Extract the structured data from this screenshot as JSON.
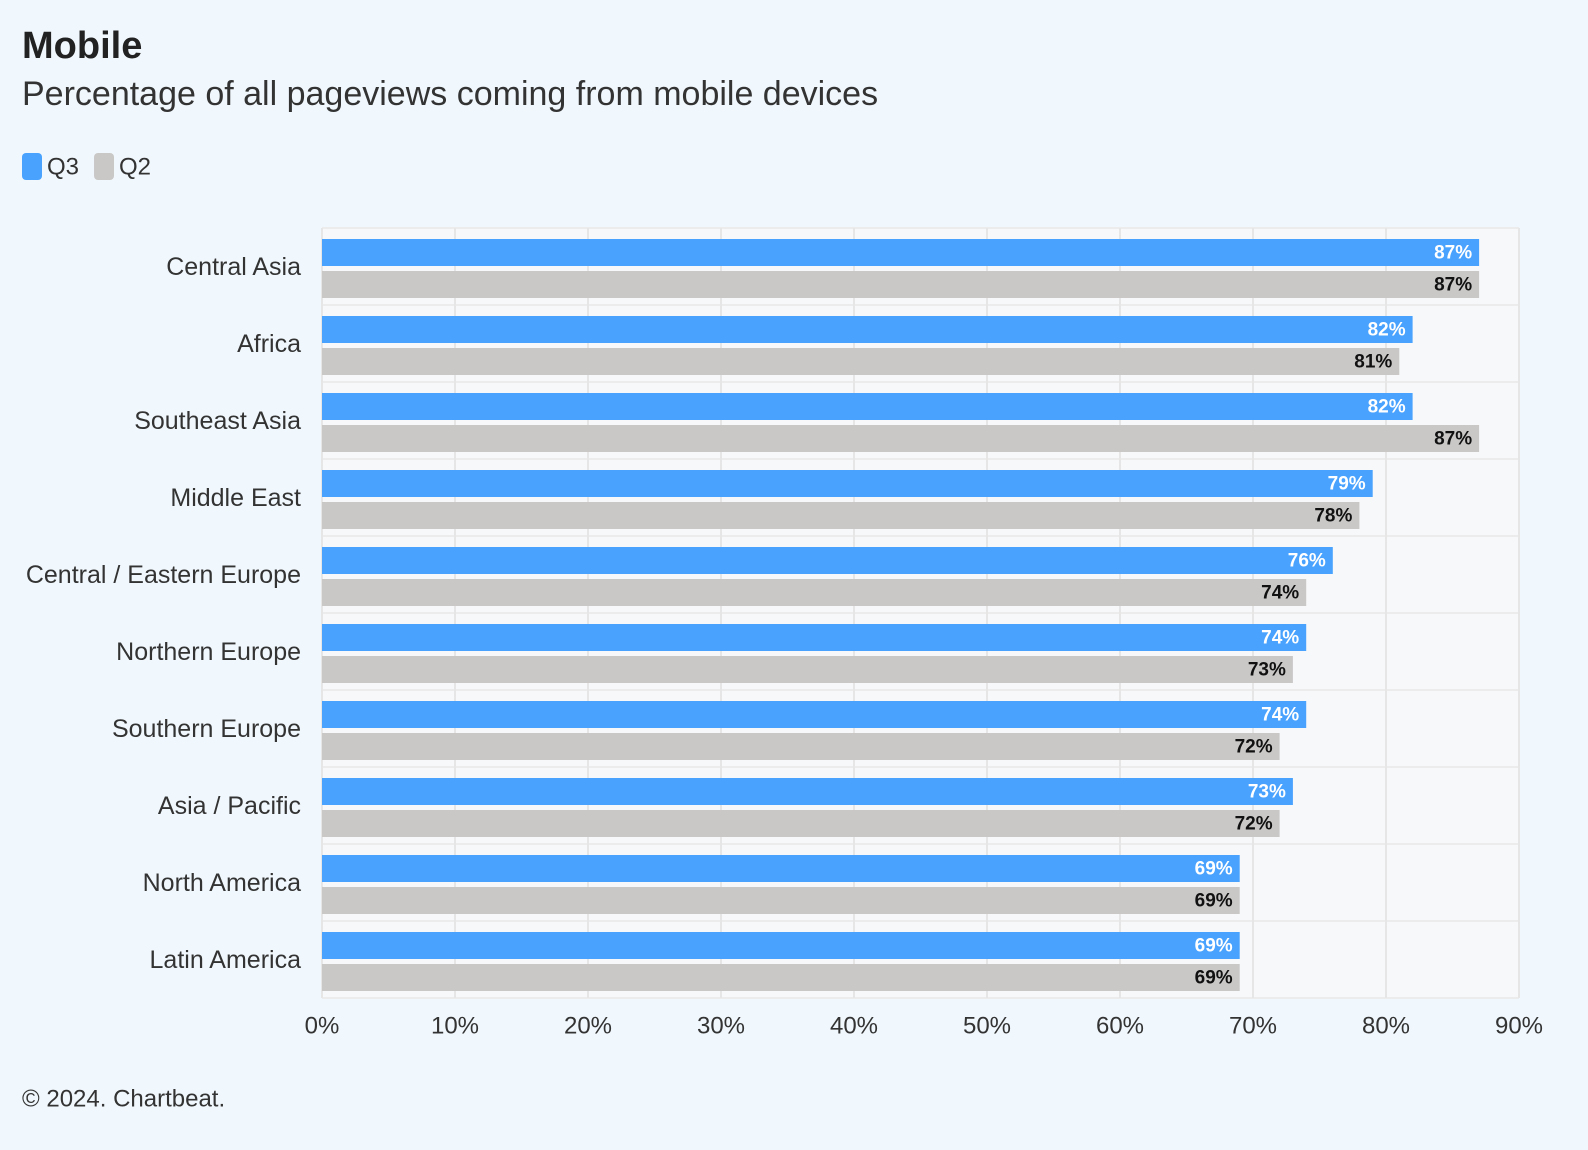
{
  "chart_data": {
    "type": "bar",
    "orientation": "horizontal",
    "title": "Mobile",
    "subtitle": "Percentage of all pageviews coming from mobile devices",
    "credit": "© 2024. Chartbeat.",
    "categories": [
      "Central Asia",
      "Africa",
      "Southeast Asia",
      "Middle East",
      "Central / Eastern Europe",
      "Northern Europe",
      "Southern Europe",
      "Asia / Pacific",
      "North America",
      "Latin America"
    ],
    "series": [
      {
        "name": "Q3",
        "color": "#48a2fe",
        "label_color": "#ffffff",
        "values": [
          87,
          82,
          82,
          79,
          76,
          74,
          74,
          73,
          69,
          69
        ],
        "value_labels": [
          "87%",
          "82%",
          "82%",
          "79%",
          "76%",
          "74%",
          "74%",
          "73%",
          "69%",
          "69%"
        ]
      },
      {
        "name": "Q2",
        "color": "#c9c8c7",
        "label_color": "#111111",
        "values": [
          87,
          81,
          87,
          78,
          74,
          73,
          72,
          72,
          69,
          69
        ],
        "value_labels": [
          "87%",
          "81%",
          "87%",
          "78%",
          "74%",
          "73%",
          "72%",
          "72%",
          "69%",
          "69%"
        ]
      }
    ],
    "xlim": [
      0,
      90
    ],
    "xticks": [
      {
        "value": 0,
        "label": "0%"
      },
      {
        "value": 10,
        "label": "10%"
      },
      {
        "value": 20,
        "label": "20%"
      },
      {
        "value": 30,
        "label": "30%"
      },
      {
        "value": 40,
        "label": "40%"
      },
      {
        "value": 50,
        "label": "50%"
      },
      {
        "value": 60,
        "label": "60%"
      },
      {
        "value": 70,
        "label": "70%"
      },
      {
        "value": 80,
        "label": "80%"
      },
      {
        "value": 90,
        "label": "90%"
      }
    ],
    "grid": true
  }
}
